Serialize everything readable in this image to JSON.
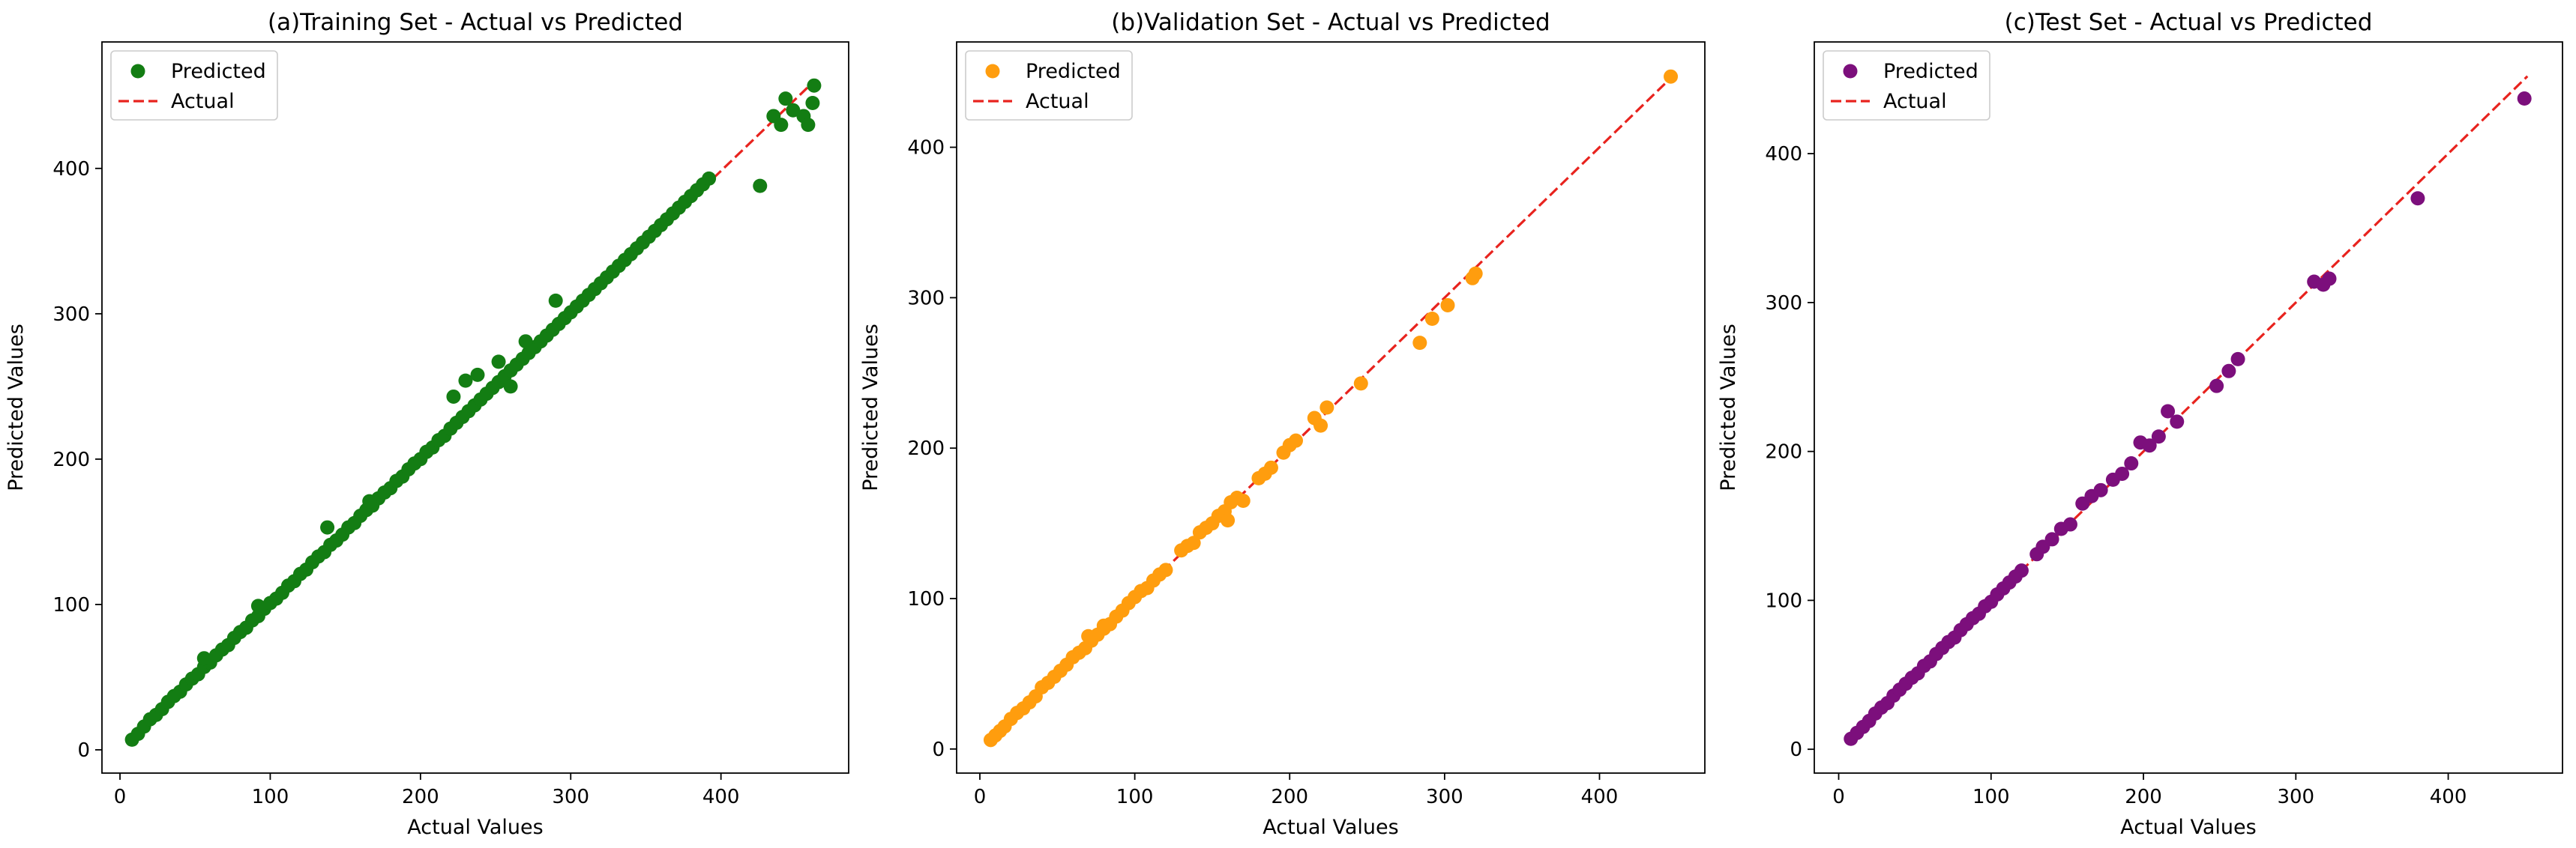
{
  "chart_data": [
    {
      "type": "scatter",
      "title": "(a)Training Set - Actual vs Predicted",
      "xlabel": "Actual Values",
      "ylabel": "Predicted Values",
      "xlim": [
        -12,
        485
      ],
      "ylim": [
        -16,
        487
      ],
      "xticks": [
        0,
        100,
        200,
        300,
        400
      ],
      "yticks": [
        0,
        100,
        200,
        300,
        400
      ],
      "grid": false,
      "legend_position": "top-left",
      "reference_line": {
        "name": "Actual",
        "style": "dashed",
        "color": "#e8231e",
        "from": [
          7,
          7
        ],
        "to": [
          462,
          460
        ]
      },
      "series": [
        {
          "name": "Predicted",
          "color": "#137d13",
          "x": [
            8,
            12,
            16,
            20,
            24,
            28,
            32,
            36,
            40,
            44,
            48,
            52,
            56,
            60,
            64,
            68,
            72,
            76,
            80,
            84,
            88,
            92,
            96,
            100,
            104,
            108,
            112,
            116,
            120,
            124,
            128,
            132,
            136,
            140,
            144,
            148,
            152,
            156,
            160,
            164,
            168,
            172,
            176,
            180,
            184,
            188,
            192,
            196,
            200,
            204,
            208,
            212,
            216,
            220,
            224,
            228,
            232,
            236,
            240,
            244,
            248,
            252,
            256,
            260,
            264,
            268,
            272,
            276,
            280,
            284,
            288,
            292,
            296,
            300,
            304,
            308,
            312,
            316,
            320,
            324,
            328,
            332,
            336,
            340,
            344,
            348,
            352,
            356,
            360,
            364,
            368,
            372,
            376,
            380,
            384,
            388,
            392,
            426,
            435,
            440,
            443,
            448,
            455,
            458,
            461,
            462,
            138,
            222,
            230,
            238,
            252,
            260,
            270,
            290,
            56,
            92,
            166
          ],
          "y": [
            7,
            11,
            16,
            21,
            24,
            28,
            33,
            37,
            40,
            45,
            49,
            52,
            57,
            60,
            65,
            69,
            72,
            77,
            81,
            84,
            89,
            92,
            97,
            101,
            104,
            108,
            113,
            116,
            121,
            124,
            129,
            133,
            136,
            141,
            144,
            148,
            153,
            156,
            161,
            165,
            168,
            173,
            177,
            180,
            185,
            188,
            193,
            197,
            200,
            205,
            208,
            213,
            216,
            221,
            225,
            229,
            233,
            237,
            241,
            245,
            249,
            253,
            257,
            261,
            265,
            269,
            273,
            277,
            281,
            285,
            289,
            293,
            297,
            301,
            305,
            309,
            313,
            317,
            321,
            325,
            329,
            333,
            337,
            341,
            345,
            349,
            353,
            357,
            361,
            365,
            369,
            373,
            377,
            381,
            385,
            389,
            393,
            388,
            436,
            430,
            448,
            440,
            436,
            430,
            445,
            457,
            153,
            243,
            254,
            258,
            267,
            250,
            281,
            309,
            63,
            99,
            171
          ]
        }
      ]
    },
    {
      "type": "scatter",
      "title": "(b)Validation Set - Actual vs Predicted",
      "xlabel": "Actual Values",
      "ylabel": "Predicted Values",
      "xlim": [
        -15,
        468
      ],
      "ylim": [
        -16,
        470
      ],
      "xticks": [
        0,
        100,
        200,
        300,
        400
      ],
      "yticks": [
        0,
        100,
        200,
        300,
        400
      ],
      "grid": false,
      "legend_position": "top-left",
      "reference_line": {
        "name": "Actual",
        "style": "dashed",
        "color": "#e8231e",
        "from": [
          7,
          7
        ],
        "to": [
          446,
          446
        ]
      },
      "series": [
        {
          "name": "Predicted",
          "color": "#ff9d0e",
          "x": [
            7,
            10,
            13,
            16,
            20,
            24,
            28,
            32,
            36,
            40,
            44,
            48,
            52,
            56,
            60,
            64,
            68,
            72,
            76,
            80,
            84,
            88,
            92,
            96,
            100,
            104,
            108,
            112,
            116,
            120,
            130,
            134,
            138,
            142,
            146,
            150,
            154,
            158,
            162,
            166,
            170,
            180,
            184,
            188,
            196,
            200,
            204,
            216,
            220,
            224,
            246,
            284,
            292,
            302,
            318,
            320,
            446,
            70,
            80,
            160
          ],
          "y": [
            6,
            9,
            12,
            15,
            20,
            24,
            27,
            31,
            35,
            41,
            44,
            48,
            52,
            56,
            61,
            64,
            67,
            72,
            76,
            80,
            83,
            88,
            92,
            97,
            101,
            105,
            107,
            112,
            116,
            119,
            132,
            135,
            137,
            144,
            147,
            150,
            155,
            158,
            164,
            167,
            165,
            180,
            183,
            187,
            197,
            202,
            205,
            220,
            215,
            227,
            243,
            270,
            286,
            295,
            313,
            316,
            447,
            75,
            82,
            152
          ]
        }
      ]
    },
    {
      "type": "scatter",
      "title": "(c)Test Set - Actual vs Predicted",
      "xlabel": "Actual Values",
      "ylabel": "Predicted Values",
      "xlim": [
        -16,
        475
      ],
      "ylim": [
        -16,
        475
      ],
      "xticks": [
        0,
        100,
        200,
        300,
        400
      ],
      "yticks": [
        0,
        100,
        200,
        300,
        400
      ],
      "grid": false,
      "legend_position": "top-left",
      "reference_line": {
        "name": "Actual",
        "style": "dashed",
        "color": "#e8231e",
        "from": [
          7,
          7
        ],
        "to": [
          452,
          452
        ]
      },
      "series": [
        {
          "name": "Predicted",
          "color": "#7c0f7c",
          "x": [
            8,
            12,
            16,
            20,
            24,
            28,
            32,
            36,
            40,
            44,
            48,
            52,
            56,
            60,
            64,
            68,
            72,
            76,
            80,
            84,
            88,
            92,
            96,
            100,
            104,
            108,
            112,
            116,
            120,
            130,
            134,
            140,
            146,
            152,
            160,
            166,
            172,
            180,
            186,
            192,
            198,
            204,
            210,
            216,
            222,
            248,
            256,
            262,
            312,
            318,
            322,
            380,
            450
          ],
          "y": [
            7,
            11,
            15,
            19,
            24,
            28,
            31,
            36,
            40,
            44,
            48,
            51,
            56,
            59,
            64,
            68,
            72,
            75,
            80,
            84,
            88,
            91,
            96,
            99,
            104,
            108,
            112,
            116,
            120,
            131,
            136,
            141,
            148,
            151,
            165,
            170,
            174,
            181,
            185,
            192,
            206,
            204,
            210,
            227,
            220,
            244,
            254,
            262,
            314,
            312,
            316,
            370,
            437
          ]
        }
      ]
    }
  ]
}
